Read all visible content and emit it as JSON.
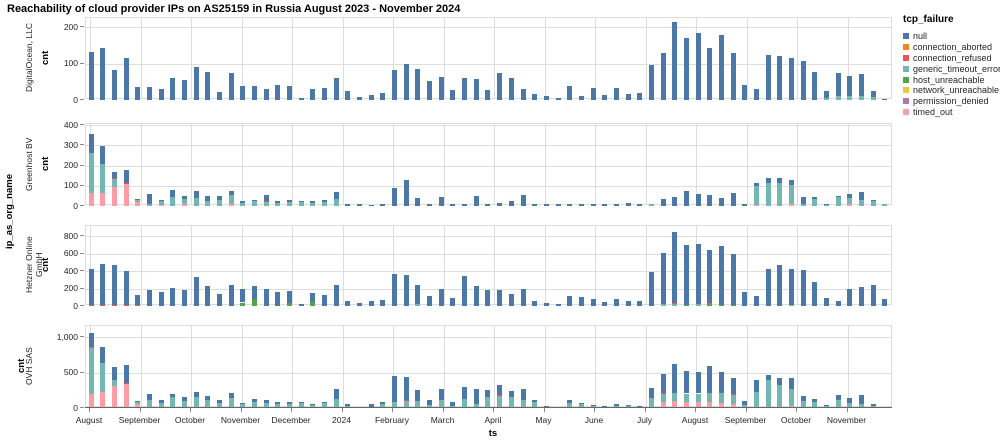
{
  "title": "Reachability of cloud provider IPs on AS25159 in Russia August 2023 - November 2024",
  "axis": {
    "x_title": "ts",
    "y_title": "cnt",
    "facet_axis_title": "ip_as_org_name"
  },
  "legend": {
    "title": "tcp_failure",
    "items": [
      {
        "label": "null",
        "color": "#4c78a8"
      },
      {
        "label": "connection_aborted",
        "color": "#f58518"
      },
      {
        "label": "connection_refused",
        "color": "#e45756"
      },
      {
        "label": "generic_timeout_error",
        "color": "#72b7b2"
      },
      {
        "label": "host_unreachable",
        "color": "#54a24b"
      },
      {
        "label": "network_unreachable",
        "color": "#eeca3b"
      },
      {
        "label": "permission_denied",
        "color": "#b279a2"
      },
      {
        "label": "timed_out",
        "color": "#ff9da6"
      }
    ]
  },
  "chart_data": {
    "type": "bar",
    "stacked": true,
    "x_unit": "week",
    "x_labels": [
      "August",
      "September",
      "October",
      "November",
      "December",
      "2024",
      "February",
      "March",
      "April",
      "May",
      "June",
      "July",
      "August",
      "September",
      "October",
      "November"
    ],
    "segment_keys": {
      "n": "null",
      "a": "connection_aborted",
      "r": "connection_refused",
      "g": "generic_timeout_error",
      "h": "host_unreachable",
      "w": "network_unreachable",
      "p": "permission_denied",
      "t": "timed_out"
    },
    "stack_order_bottom_to_top": [
      "t",
      "p",
      "w",
      "h",
      "g",
      "r",
      "a",
      "n"
    ],
    "panels": [
      {
        "facet": "DigitalOcean, LLC",
        "ylim": [
          0,
          225
        ],
        "yticks": [
          0,
          100,
          200
        ],
        "ytick_labels": [
          "0",
          "100",
          "200"
        ],
        "bars": [
          {
            "n": 133
          },
          {
            "n": 142
          },
          {
            "n": 83
          },
          {
            "n": 115
          },
          {
            "n": 37
          },
          {
            "n": 35
          },
          {
            "n": 30
          },
          {
            "n": 60
          },
          {
            "n": 55
          },
          {
            "n": 90
          },
          {
            "n": 76
          },
          {
            "n": 21
          },
          {
            "n": 73
          },
          {
            "n": 39
          },
          {
            "n": 38
          },
          {
            "n": 30
          },
          {
            "n": 41
          },
          {
            "n": 39
          },
          {
            "n": 6
          },
          {
            "n": 30
          },
          {
            "n": 34
          },
          {
            "n": 60
          },
          {
            "n": 25
          },
          {
            "n": 7
          },
          {
            "n": 15
          },
          {
            "n": 20
          },
          {
            "n": 82
          },
          {
            "n": 98
          },
          {
            "n": 85
          },
          {
            "n": 53
          },
          {
            "n": 64
          },
          {
            "n": 28
          },
          {
            "n": 60
          },
          {
            "n": 58
          },
          {
            "n": 27
          },
          {
            "n": 75
          },
          {
            "n": 61
          },
          {
            "n": 29
          },
          {
            "n": 17
          },
          {
            "n": 11
          },
          {
            "n": 5
          },
          {
            "n": 39
          },
          {
            "n": 11
          },
          {
            "n": 32
          },
          {
            "n": 14
          },
          {
            "n": 32
          },
          {
            "n": 16
          },
          {
            "n": 18
          },
          {
            "n": 96
          },
          {
            "n": 130
          },
          {
            "n": 215
          },
          {
            "n": 170
          },
          {
            "n": 183
          },
          {
            "n": 142
          },
          {
            "n": 177
          },
          {
            "n": 128
          },
          {
            "n": 41
          },
          {
            "n": 30
          },
          {
            "n": 124
          },
          {
            "n": 121
          },
          {
            "n": 114
          },
          {
            "n": 106
          },
          {
            "n": 78
          },
          {
            "g": 5,
            "n": 20
          },
          {
            "g": 10,
            "n": 65
          },
          {
            "g": 12,
            "n": 55
          },
          {
            "g": 12,
            "n": 60
          },
          {
            "g": 8,
            "n": 18
          },
          {
            "n": 3
          }
        ]
      },
      {
        "facet": "Greenhost BV",
        "ylim": [
          0,
          405
        ],
        "yticks": [
          0,
          100,
          200,
          300,
          400
        ],
        "ytick_labels": [
          "0",
          "100",
          "200",
          "300",
          "400"
        ],
        "bars": [
          {
            "t": 65,
            "g": 195,
            "n": 95
          },
          {
            "t": 65,
            "g": 140,
            "n": 90
          },
          {
            "t": 95,
            "g": 40,
            "r": 5,
            "n": 30
          },
          {
            "t": 110,
            "r": 5,
            "n": 65
          },
          {
            "t": 18,
            "g": 10,
            "n": 5
          },
          {
            "g": 10,
            "n": 50
          },
          {
            "t": 5,
            "g": 18,
            "n": 8
          },
          {
            "g": 45,
            "n": 33
          },
          {
            "t": 8,
            "g": 25,
            "n": 15
          },
          {
            "g": 40,
            "n": 35
          },
          {
            "g": 25,
            "n": 25
          },
          {
            "g": 30,
            "n": 20
          },
          {
            "t": 8,
            "g": 45,
            "n": 22
          },
          {
            "g": 15,
            "n": 12
          },
          {
            "g": 25,
            "n": 5
          },
          {
            "g": 20,
            "r": 5,
            "n": 30
          },
          {
            "g": 15,
            "n": 12
          },
          {
            "g": 18,
            "n": 12
          },
          {
            "g": 20,
            "n": 5
          },
          {
            "g": 15,
            "n": 10
          },
          {
            "g": 20,
            "n": 12
          },
          {
            "g": 35,
            "n": 35
          },
          {
            "n": 12
          },
          {
            "n": 8
          },
          {
            "n": 5
          },
          {
            "n": 12
          },
          {
            "n": 90
          },
          {
            "n": 130
          },
          {
            "n": 40
          },
          {
            "n": 12
          },
          {
            "n": 45
          },
          {
            "n": 8
          },
          {
            "n": 12
          },
          {
            "n": 48
          },
          {
            "n": 10
          },
          {
            "n": 15
          },
          {
            "n": 25
          },
          {
            "n": 55
          },
          {
            "n": 8
          },
          {
            "n": 8
          },
          {
            "n": 10
          },
          {
            "n": 8
          },
          {
            "n": 10
          },
          {
            "n": 8
          },
          {
            "n": 10
          },
          {
            "n": 8
          },
          {
            "n": 15
          },
          {
            "n": 8
          },
          {
            "g": 8
          },
          {
            "n": 35
          },
          {
            "n": 45
          },
          {
            "n": 75
          },
          {
            "n": 60
          },
          {
            "n": 55
          },
          {
            "n": 40
          },
          {
            "n": 65
          },
          {
            "n": 12
          },
          {
            "t": 5,
            "g": 95,
            "n": 15
          },
          {
            "g": 115,
            "n": 22
          },
          {
            "g": 112,
            "n": 25
          },
          {
            "t": 10,
            "g": 95,
            "n": 22
          },
          {
            "g": 10,
            "n": 35
          },
          {
            "g": 35,
            "n": 7
          },
          {
            "g": 5,
            "n": 5
          },
          {
            "g": 45,
            "n": 5
          },
          {
            "t": 8,
            "g": 30,
            "n": 22
          },
          {
            "g": 30,
            "n": 40
          },
          {
            "g": 25,
            "n": 3
          },
          {
            "g": 8
          }
        ]
      },
      {
        "facet": "Hetzner Online GmbH",
        "ylim": [
          0,
          915
        ],
        "yticks": [
          0,
          200,
          400,
          600,
          800
        ],
        "ytick_labels": [
          "0",
          "200",
          "400",
          "600",
          "800"
        ],
        "bars": [
          {
            "r": 10,
            "n": 410
          },
          {
            "r": 10,
            "n": 470
          },
          {
            "r": 10,
            "n": 460
          },
          {
            "r": 10,
            "n": 390
          },
          {
            "r": 8,
            "n": 122
          },
          {
            "n": 185
          },
          {
            "n": 160
          },
          {
            "n": 205
          },
          {
            "n": 185
          },
          {
            "n": 330
          },
          {
            "n": 225
          },
          {
            "n": 140
          },
          {
            "n": 240
          },
          {
            "h": 40,
            "n": 155
          },
          {
            "h": 85,
            "n": 145
          },
          {
            "n": 190
          },
          {
            "n": 165
          },
          {
            "h": 30,
            "n": 140
          },
          {
            "n": 20
          },
          {
            "h": 45,
            "n": 105
          },
          {
            "n": 130
          },
          {
            "n": 240
          },
          {
            "n": 60
          },
          {
            "n": 35
          },
          {
            "n": 55
          },
          {
            "n": 65
          },
          {
            "n": 365
          },
          {
            "n": 355
          },
          {
            "g": 25,
            "n": 215
          },
          {
            "n": 115
          },
          {
            "n": 200
          },
          {
            "n": 95
          },
          {
            "n": 340
          },
          {
            "n": 230
          },
          {
            "n": 180
          },
          {
            "n": 180
          },
          {
            "n": 140
          },
          {
            "n": 200
          },
          {
            "n": 60
          },
          {
            "n": 30
          },
          {
            "n": 25
          },
          {
            "n": 110
          },
          {
            "n": 100
          },
          {
            "n": 75
          },
          {
            "n": 50
          },
          {
            "n": 75
          },
          {
            "n": 55
          },
          {
            "n": 55
          },
          {
            "n": 390
          },
          {
            "g": 20,
            "n": 590
          },
          {
            "g": 20,
            "r": 10,
            "n": 820
          },
          {
            "h": 15,
            "n": 685
          },
          {
            "g": 20,
            "n": 690
          },
          {
            "h": 20,
            "r": 10,
            "n": 610
          },
          {
            "h": 15,
            "n": 675
          },
          {
            "h": 15,
            "n": 585
          },
          {
            "n": 160
          },
          {
            "n": 120
          },
          {
            "n": 420
          },
          {
            "n": 470
          },
          {
            "g": 15,
            "n": 405
          },
          {
            "n": 415
          },
          {
            "n": 270
          },
          {
            "n": 90
          },
          {
            "n": 55
          },
          {
            "n": 190
          },
          {
            "n": 220
          },
          {
            "n": 235
          },
          {
            "n": 80
          }
        ]
      },
      {
        "facet": "OVH SAS",
        "ylim": [
          0,
          1160
        ],
        "yticks": [
          0,
          500,
          1000
        ],
        "ytick_labels": [
          "0",
          "500",
          "1,000"
        ],
        "bars": [
          {
            "t": 200,
            "g": 650,
            "r": 10,
            "n": 200
          },
          {
            "t": 220,
            "g": 410,
            "n": 240
          },
          {
            "t": 310,
            "g": 90,
            "n": 180
          },
          {
            "t": 340,
            "r": 10,
            "n": 260
          },
          {
            "t": 50,
            "g": 35,
            "n": 20
          },
          {
            "t": 10,
            "g": 100,
            "n": 90
          },
          {
            "g": 70,
            "n": 50
          },
          {
            "g": 150,
            "n": 50
          },
          {
            "t": 10,
            "g": 90,
            "n": 50
          },
          {
            "g": 150,
            "n": 75
          },
          {
            "g": 120,
            "n": 45
          },
          {
            "g": 70,
            "n": 50
          },
          {
            "t": 10,
            "g": 130,
            "n": 75
          },
          {
            "g": 50,
            "n": 20
          },
          {
            "g": 90,
            "n": 40
          },
          {
            "g": 70,
            "n": 50
          },
          {
            "g": 50,
            "n": 40
          },
          {
            "g": 60,
            "n": 20
          },
          {
            "g": 70,
            "n": 10
          },
          {
            "g": 50,
            "n": 10
          },
          {
            "g": 70,
            "n": 10
          },
          {
            "g": 130,
            "n": 145
          },
          {
            "g": 30,
            "n": 20
          },
          {
            "n": 20
          },
          {
            "g": 20,
            "n": 40
          },
          {
            "g": 60,
            "n": 30
          },
          {
            "g": 80,
            "n": 370
          },
          {
            "t": 10,
            "g": 90,
            "r": 15,
            "n": 325
          },
          {
            "t": 10,
            "g": 90,
            "n": 160
          },
          {
            "g": 40,
            "n": 80
          },
          {
            "g": 120,
            "n": 155
          },
          {
            "g": 30,
            "n": 50
          },
          {
            "t": 10,
            "g": 120,
            "n": 170
          },
          {
            "g": 60,
            "n": 205
          },
          {
            "g": 150,
            "n": 110
          },
          {
            "g": 170,
            "r": 10,
            "n": 140
          },
          {
            "g": 150,
            "n": 95
          },
          {
            "t": 10,
            "g": 110,
            "n": 145
          },
          {
            "g": 80,
            "n": 30
          },
          {
            "g": 10,
            "n": 15
          },
          {
            "g": 10
          },
          {
            "g": 70,
            "n": 50
          },
          {
            "g": 50,
            "n": 20
          },
          {
            "g": 25,
            "n": 15
          },
          {
            "g": 15,
            "n": 15
          },
          {
            "g": 30,
            "n": 30
          },
          {
            "g": 25,
            "n": 15
          },
          {
            "g": 15,
            "n": 10
          },
          {
            "t": 20,
            "g": 120,
            "n": 145
          },
          {
            "t": 90,
            "g": 110,
            "r": 10,
            "n": 270
          },
          {
            "t": 100,
            "g": 115,
            "n": 405
          },
          {
            "t": 90,
            "g": 115,
            "n": 320
          },
          {
            "t": 85,
            "g": 120,
            "n": 305
          },
          {
            "t": 85,
            "g": 130,
            "n": 375
          },
          {
            "t": 70,
            "g": 145,
            "n": 295
          },
          {
            "t": 60,
            "g": 130,
            "r": 10,
            "n": 220
          },
          {
            "g": 40,
            "n": 60
          },
          {
            "g": 230,
            "n": 160
          },
          {
            "g": 390,
            "n": 80
          },
          {
            "g": 330,
            "n": 100
          },
          {
            "t": 30,
            "g": 245,
            "n": 145
          },
          {
            "g": 105,
            "n": 65
          },
          {
            "g": 90,
            "n": 40
          },
          {
            "g": 30,
            "n": 15
          },
          {
            "g": 120,
            "n": 60
          },
          {
            "g": 70,
            "n": 70
          },
          {
            "g": 60,
            "n": 120
          },
          {
            "g": 30,
            "n": 25
          },
          {
            "g": 15
          }
        ]
      }
    ]
  }
}
